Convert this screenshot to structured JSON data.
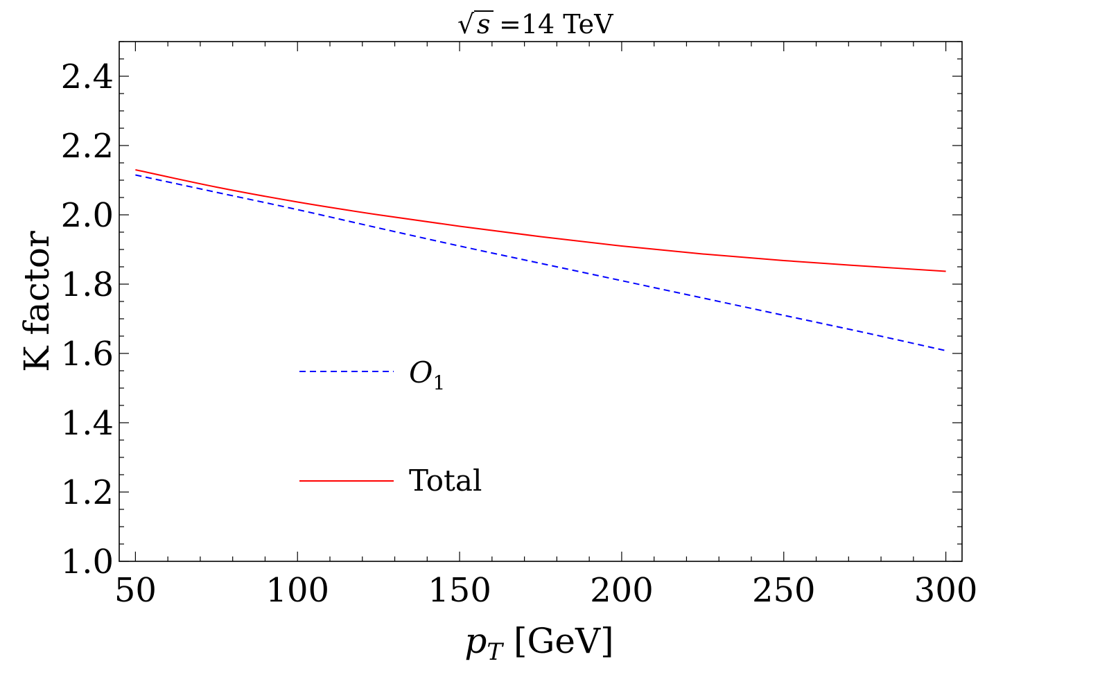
{
  "chart_data": {
    "type": "line",
    "title": {
      "radical": "√",
      "variable": "s",
      "value": "=14 TeV"
    },
    "xlabel": {
      "variable": "p",
      "subscript": "T",
      "unit": " [GeV]"
    },
    "ylabel": "K factor",
    "xlim": [
      45,
      305
    ],
    "ylim": [
      1.0,
      2.5
    ],
    "xticks": [
      50,
      100,
      150,
      200,
      250,
      300
    ],
    "xtick_labels": [
      "50",
      "100",
      "150",
      "200",
      "250",
      "300"
    ],
    "yticks": [
      1.0,
      1.2,
      1.4,
      1.6,
      1.8,
      2.0,
      2.2,
      2.4
    ],
    "ytick_labels": [
      "1.0",
      "1.2",
      "1.4",
      "1.6",
      "1.8",
      "2.0",
      "2.2",
      "2.4"
    ],
    "x_minor_step": 10,
    "y_minor_step": 0.05,
    "legend_position": "center-left",
    "series": [
      {
        "name": "O₁",
        "legend_main": "O",
        "legend_sub": "1",
        "color": "#0000ff",
        "style": "dashed",
        "x": [
          50,
          75,
          100,
          125,
          150,
          175,
          200,
          225,
          250,
          275,
          300
        ],
        "values": [
          2.115,
          2.065,
          2.015,
          1.962,
          1.91,
          1.86,
          1.81,
          1.76,
          1.71,
          1.66,
          1.608
        ]
      },
      {
        "name": "Total",
        "legend_main": "Total",
        "legend_sub": "",
        "color": "#ff0000",
        "style": "solid",
        "x": [
          50,
          75,
          100,
          125,
          150,
          175,
          200,
          225,
          250,
          275,
          300
        ],
        "values": [
          2.13,
          2.08,
          2.037,
          2.0,
          1.967,
          1.937,
          1.91,
          1.887,
          1.868,
          1.852,
          1.837
        ]
      }
    ]
  }
}
